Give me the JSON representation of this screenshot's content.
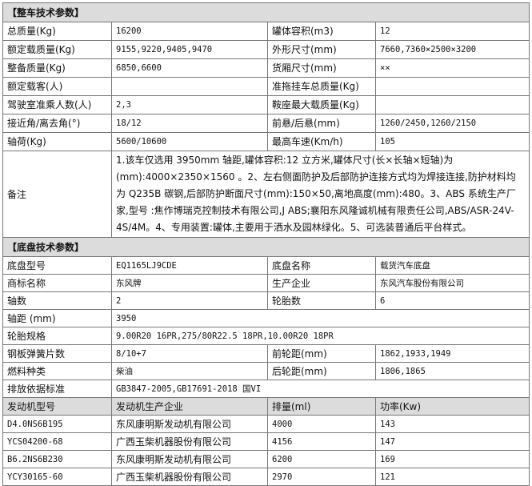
{
  "vehicle_section": {
    "title": "【整车技术参数】",
    "rows": [
      {
        "l1": "总质量(Kg)",
        "v1": "16200",
        "l2": "罐体容积(m3)",
        "v2": "12"
      },
      {
        "l1": "额定载质量(Kg)",
        "v1": "9155,9220,9405,9470",
        "l2": "外形尺寸(mm)",
        "v2": "7660,7360×2500×3200"
      },
      {
        "l1": "整备质量(Kg)",
        "v1": "6850,6600",
        "l2": "货厢尺寸(mm)",
        "v2": "××"
      },
      {
        "l1": "额定载客(人)",
        "v1": "",
        "l2": "准拖挂车总质量(Kg)",
        "v2": ""
      },
      {
        "l1": "驾驶室准乘人数(人)",
        "v1": "2,3",
        "l2": "鞍座最大载质量(Kg)",
        "v2": ""
      },
      {
        "l1": "接近角/离去角(°)",
        "v1": "18/12",
        "l2": "前悬/后悬(mm)",
        "v2": "1260/2450,1260/2150"
      },
      {
        "l1": "轴荷(Kg)",
        "v1": "5600/10600",
        "l2": "最高车速(Km/h)",
        "v2": "105"
      }
    ],
    "remark_label": "备注",
    "remark": "1.该车仅选用 3950mm 轴距,罐体容积:12 立方米,罐体尺寸(长×长轴×短轴)为(mm):4000×2350×1560 。2、左右侧面防护及后部防护连接方式均为焊接连接,防护材料均为 Q235B 碳钢,后部防护断面尺寸(mm):150×50,离地高度(mm):480。3、ABS 系统生产厂家,型号 :焦作博瑞克控制技术有限公司,J ABS;襄阳东风隆诚机械有限责任公司,ABS/ASR-24V-4S/4M。4、专用装置:罐体,主要用于洒水及园林绿化。5、可选装普通后平台样式。"
  },
  "chassis_section": {
    "title": "【底盘技术参数】",
    "rows": [
      {
        "l1": "底盘型号",
        "v1": "EQ1165LJ9CDE",
        "l2": "底盘名称",
        "v2": "载货汽车底盘"
      },
      {
        "l1": "商标名称",
        "v1": "东风牌",
        "l2": "生产企业",
        "v2": "东风汽车股份有限公司"
      },
      {
        "l1": "轴数",
        "v1": "2",
        "l2": "轮胎数",
        "v2": "6"
      }
    ],
    "wheelbase": {
      "label": "轴距 (mm)",
      "value": "3950"
    },
    "tires": {
      "label": "轮胎规格",
      "value": "9.00R20 16PR,275/80R22.5 18PR,10.00R20 18PR"
    },
    "rows2": [
      {
        "l1": "钢板弹簧片数",
        "v1": "8/10+7",
        "l2": "前轮距(mm)",
        "v2": "1862,1933,1949"
      },
      {
        "l1": "燃料种类",
        "v1": "柴油",
        "l2": "后轮距(mm)",
        "v2": "1806,1865"
      }
    ],
    "emission": {
      "label": "排放依据标准",
      "value": "GB3847-2005,GB17691-2018 国VI"
    }
  },
  "engines": {
    "headers": [
      "发动机型号",
      "发动机生产企业",
      "排量(ml)",
      "功率(Kw)"
    ],
    "rows": [
      [
        "D4.0NS6B195",
        "东风康明斯发动机有限公司",
        "4000",
        "143"
      ],
      [
        "YCS04200-68",
        "广西玉柴机器股份有限公司",
        "4156",
        "147"
      ],
      [
        "B6.2NS6B230",
        "东风康明斯发动机有限公司",
        "6200",
        "169"
      ],
      [
        "YCY30165-60",
        "广西玉柴机器股份有限公司",
        "2970",
        "121"
      ]
    ]
  }
}
